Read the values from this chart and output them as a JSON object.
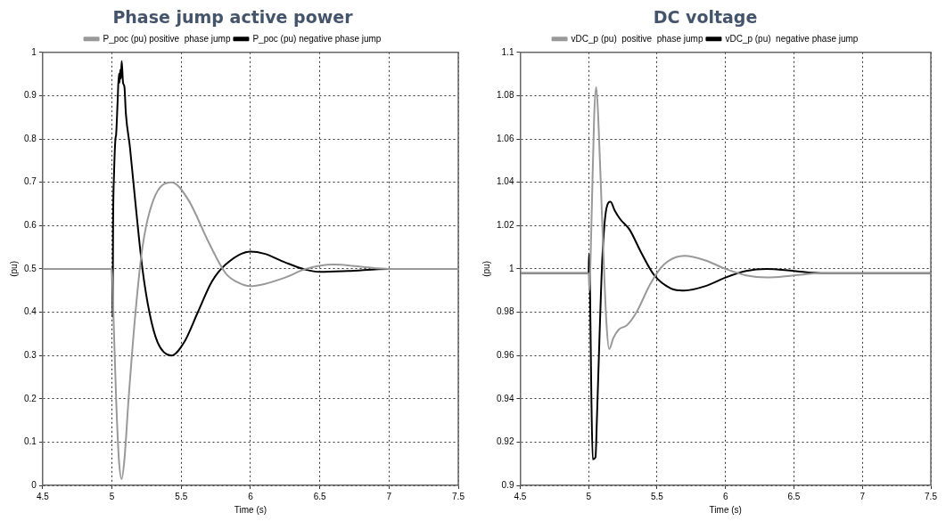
{
  "chart_data": [
    {
      "type": "line",
      "title": "Phase jump active power",
      "xlabel": "Time (s)",
      "ylabel": "(pu)",
      "xlim": [
        4.5,
        7.5
      ],
      "xticks": [
        4.5,
        5,
        5.5,
        6,
        6.5,
        7,
        7.5
      ],
      "ylim": [
        0,
        1
      ],
      "yticks": [
        0,
        0.1,
        0.2,
        0.3,
        0.4,
        0.5,
        0.6,
        0.7,
        0.8,
        0.9,
        1
      ],
      "grid": true,
      "legend": "top",
      "marker": "none",
      "series": [
        {
          "name": "P_poc (pu) positive  phase jump",
          "color": "#999999",
          "x": [
            4.5,
            5.0,
            5.01,
            5.03,
            5.05,
            5.07,
            5.09,
            5.12,
            5.17,
            5.22,
            5.3,
            5.43,
            5.55,
            5.7,
            5.82,
            5.9,
            6.0,
            6.1,
            6.25,
            6.4,
            6.6,
            6.8,
            7.0,
            7.5
          ],
          "values": [
            0.5,
            0.5,
            0.4,
            0.2,
            0.06,
            0.015,
            0.06,
            0.2,
            0.4,
            0.55,
            0.66,
            0.7,
            0.66,
            0.56,
            0.49,
            0.47,
            0.46,
            0.465,
            0.48,
            0.5,
            0.51,
            0.505,
            0.5,
            0.5
          ]
        },
        {
          "name": "P_poc (pu) negative phase jump",
          "color": "#000000",
          "x": [
            4.5,
            5.0,
            5.002,
            5.005,
            5.008,
            5.015,
            5.025,
            5.03,
            5.04,
            5.05,
            5.055,
            5.06,
            5.065,
            5.07,
            5.08,
            5.09,
            5.1,
            5.13,
            5.17,
            5.22,
            5.27,
            5.33,
            5.43,
            5.52,
            5.62,
            5.72,
            5.82,
            6.0,
            6.1,
            6.25,
            6.4,
            6.5,
            6.7,
            7.0,
            7.5
          ],
          "values": [
            0.5,
            0.5,
            0.47,
            0.39,
            0.6,
            0.72,
            0.8,
            0.81,
            0.88,
            0.95,
            0.93,
            0.96,
            0.94,
            0.98,
            0.93,
            0.92,
            0.86,
            0.78,
            0.65,
            0.5,
            0.4,
            0.33,
            0.3,
            0.33,
            0.4,
            0.47,
            0.51,
            0.54,
            0.535,
            0.515,
            0.498,
            0.493,
            0.495,
            0.5,
            0.5
          ]
        }
      ]
    },
    {
      "type": "line",
      "title": "DC voltage",
      "xlabel": "Time (s)",
      "ylabel": "(pu)",
      "xlim": [
        4.5,
        7.5
      ],
      "xticks": [
        4.5,
        5,
        5.5,
        6,
        6.5,
        7,
        7.5
      ],
      "ylim": [
        0.9,
        1.1
      ],
      "yticks": [
        0.9,
        0.92,
        0.94,
        0.96,
        0.98,
        1,
        1.02,
        1.04,
        1.06,
        1.08,
        1.1
      ],
      "grid": true,
      "legend": "top",
      "marker": "none",
      "series": [
        {
          "name": "vDC_p (pu)  positive  phase jump",
          "color": "#999999",
          "x": [
            4.5,
            5.0,
            5.005,
            5.02,
            5.04,
            5.055,
            5.07,
            5.1,
            5.13,
            5.15,
            5.18,
            5.22,
            5.28,
            5.35,
            5.45,
            5.55,
            5.7,
            5.85,
            6.0,
            6.15,
            6.3,
            6.5,
            6.7,
            7.0,
            7.5
          ],
          "values": [
            0.998,
            0.998,
            0.99,
            1.02,
            1.07,
            1.084,
            1.07,
            1.02,
            0.975,
            0.963,
            0.968,
            0.972,
            0.974,
            0.98,
            0.993,
            1.002,
            1.006,
            1.004,
            1.0,
            0.997,
            0.996,
            0.997,
            0.998,
            0.998,
            0.998
          ]
        },
        {
          "name": "vDC_p (pu)  negative phase jump",
          "color": "#000000",
          "x": [
            4.5,
            5.0,
            5.003,
            5.01,
            5.02,
            5.03,
            5.05,
            5.06,
            5.08,
            5.1,
            5.13,
            5.16,
            5.19,
            5.23,
            5.3,
            5.38,
            5.48,
            5.6,
            5.7,
            5.85,
            6.0,
            6.15,
            6.3,
            6.5,
            6.7,
            7.0,
            7.5
          ],
          "values": [
            0.998,
            0.998,
            1.007,
            0.99,
            0.94,
            0.912,
            0.913,
            0.93,
            0.97,
            1.005,
            1.028,
            1.031,
            1.027,
            1.023,
            1.018,
            1.008,
            0.997,
            0.991,
            0.99,
            0.992,
            0.996,
            0.999,
            1.0,
            0.999,
            0.998,
            0.998,
            0.998
          ]
        }
      ]
    }
  ]
}
